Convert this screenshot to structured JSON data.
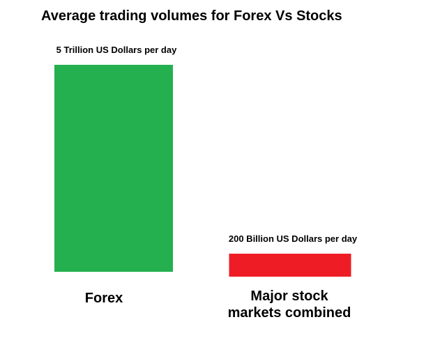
{
  "chart_data": {
    "type": "bar",
    "title": "Average trading volumes for Forex Vs Stocks",
    "categories": [
      "Forex",
      "Major stock markets combined"
    ],
    "values": [
      5000,
      200
    ],
    "unit": "Billion US Dollars per day",
    "data_labels": [
      "5 Trillion US Dollars per day",
      "200 Billion US Dollars per day"
    ],
    "category_label_lines": [
      [
        "Forex"
      ],
      [
        "Major stock",
        "markets combined"
      ]
    ],
    "colors": [
      "#24b04f",
      "#ee1d25"
    ],
    "xlabel": "",
    "ylabel": "",
    "grid": false,
    "legend": "none"
  }
}
